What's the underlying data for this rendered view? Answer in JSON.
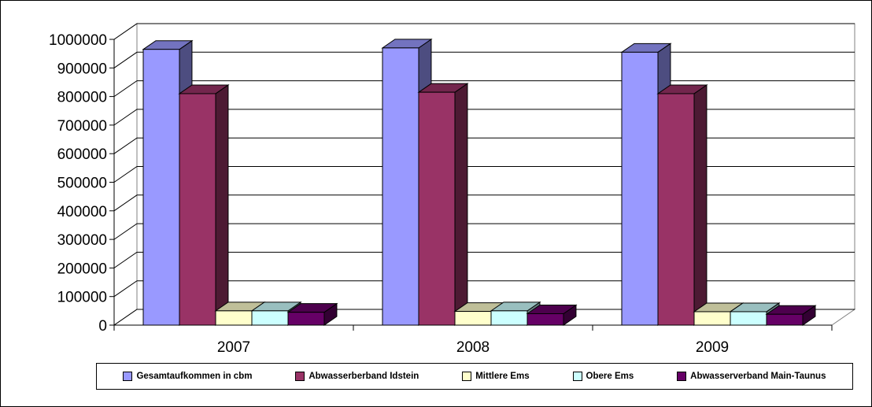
{
  "chart_data": {
    "type": "bar",
    "categories": [
      "2007",
      "2008",
      "2009"
    ],
    "series": [
      {
        "name": "Gesamtaufkommen in cbm",
        "color": "#9999ff",
        "values": [
          965000,
          970000,
          955000
        ]
      },
      {
        "name": "Abwasserberband Idstein",
        "color": "#993366",
        "values": [
          810000,
          815000,
          810000
        ]
      },
      {
        "name": "Mittlere Ems",
        "color": "#ffffcc",
        "values": [
          50000,
          48000,
          47000
        ]
      },
      {
        "name": "Obere Ems",
        "color": "#ccffff",
        "values": [
          50000,
          50000,
          47000
        ]
      },
      {
        "name": "Abwasserverband Main-Taunus",
        "color": "#660066",
        "values": [
          45000,
          40000,
          38000
        ]
      }
    ],
    "ylim": [
      0,
      1000000
    ],
    "yticks": [
      "0",
      "100000",
      "200000",
      "300000",
      "400000",
      "500000",
      "600000",
      "700000",
      "800000",
      "900000",
      "1000000"
    ],
    "legend_position": "bottom",
    "grid": true,
    "three_d": true
  }
}
